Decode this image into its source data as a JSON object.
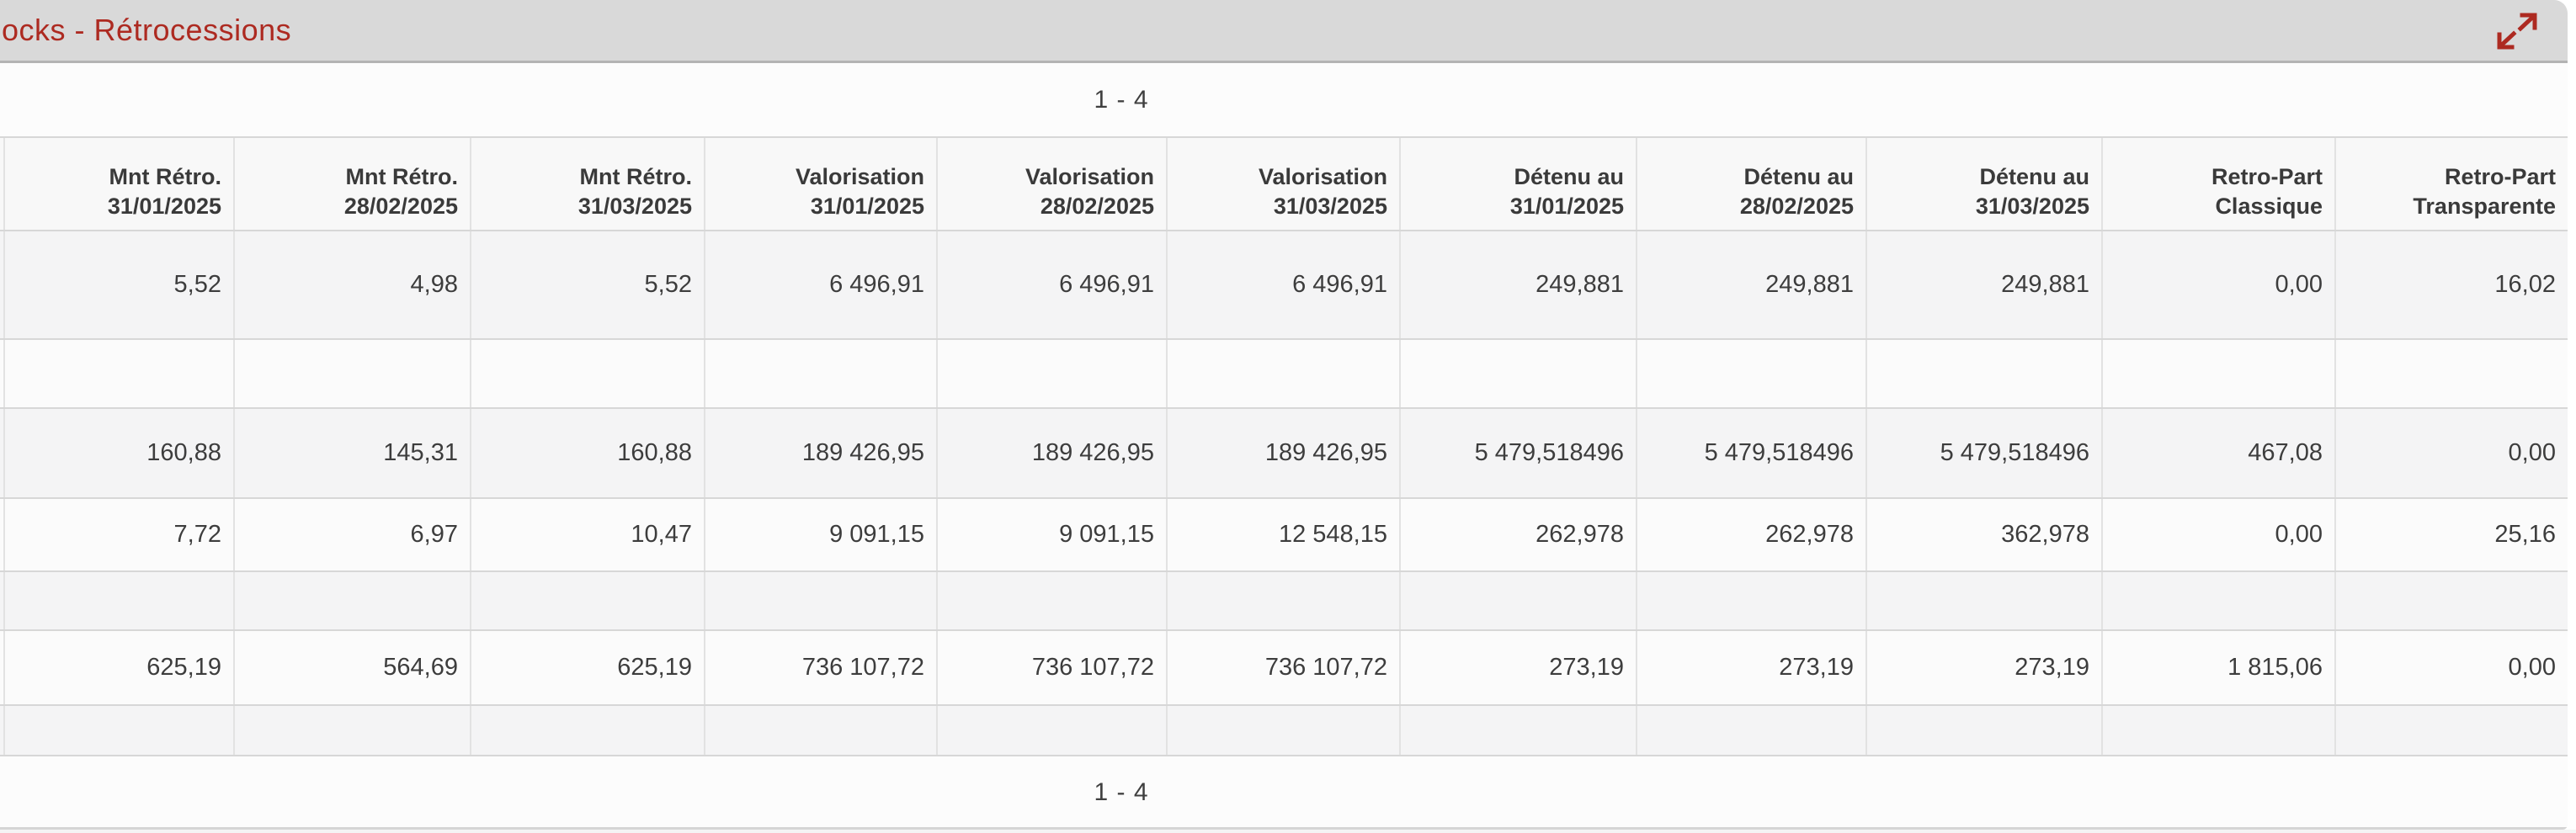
{
  "panel": {
    "title": "ocks - Rétrocessions",
    "accent_color": "#ad2a21",
    "titlebar_bg": "#d9d9d9"
  },
  "pagination": {
    "top": "1 - 4",
    "bottom": "1 - 4"
  },
  "icons": {
    "expand": "expand-diagonal-arrows-icon"
  },
  "table": {
    "columns": [
      {
        "line1": "Mnt Rétro.",
        "line2": "31/01/2025"
      },
      {
        "line1": "Mnt Rétro.",
        "line2": "28/02/2025"
      },
      {
        "line1": "Mnt Rétro.",
        "line2": "31/03/2025"
      },
      {
        "line1": "Valorisation",
        "line2": "31/01/2025"
      },
      {
        "line1": "Valorisation",
        "line2": "28/02/2025"
      },
      {
        "line1": "Valorisation",
        "line2": "31/03/2025"
      },
      {
        "line1": "Détenu au",
        "line2": "31/01/2025"
      },
      {
        "line1": "Détenu au",
        "line2": "28/02/2025"
      },
      {
        "line1": "Détenu au",
        "line2": "31/03/2025"
      },
      {
        "line1": "Retro-Part",
        "line2": "Classique"
      },
      {
        "line1": "Retro-Part",
        "line2": "Transparente"
      }
    ],
    "rows": [
      [
        "5,52",
        "4,98",
        "5,52",
        "6 496,91",
        "6 496,91",
        "6 496,91",
        "249,881",
        "249,881",
        "249,881",
        "0,00",
        "16,02"
      ],
      [
        "",
        "",
        "",
        "",
        "",
        "",
        "",
        "",
        "",
        "",
        ""
      ],
      [
        "160,88",
        "145,31",
        "160,88",
        "189 426,95",
        "189 426,95",
        "189 426,95",
        "5 479,518496",
        "5 479,518496",
        "5 479,518496",
        "467,08",
        "0,00"
      ],
      [
        "7,72",
        "6,97",
        "10,47",
        "9 091,15",
        "9 091,15",
        "12 548,15",
        "262,978",
        "262,978",
        "362,978",
        "0,00",
        "25,16"
      ],
      [
        "",
        "",
        "",
        "",
        "",
        "",
        "",
        "",
        "",
        "",
        ""
      ],
      [
        "625,19",
        "564,69",
        "625,19",
        "736 107,72",
        "736 107,72",
        "736 107,72",
        "273,19",
        "273,19",
        "273,19",
        "1 815,06",
        "0,00"
      ],
      [
        "",
        "",
        "",
        "",
        "",
        "",
        "",
        "",
        "",
        "",
        ""
      ]
    ]
  }
}
